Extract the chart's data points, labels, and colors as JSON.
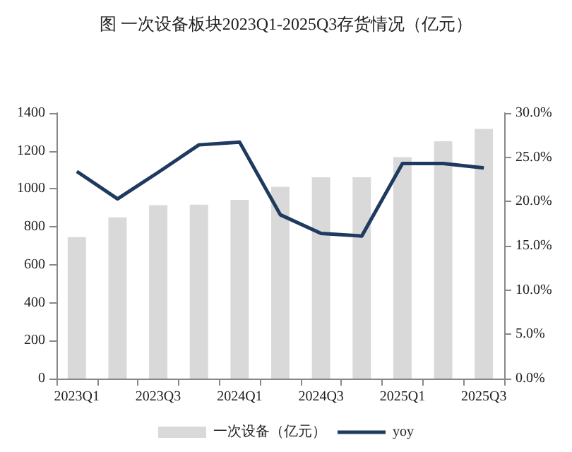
{
  "chart_data": {
    "type": "bar",
    "title": "图 一次设备板块2023Q1-2025Q3存货情况（亿元）",
    "categories": [
      "2023Q1",
      null,
      "2023Q3",
      null,
      "2024Q1",
      null,
      "2024Q3",
      null,
      "2025Q1",
      null,
      "2025Q3"
    ],
    "series": [
      {
        "name": "一次设备（亿元）",
        "color": "#d9d9d9",
        "values": [
          746,
          850,
          914,
          917,
          942,
          1011,
          1061,
          1061,
          1167,
          1251,
          1316
        ]
      },
      {
        "name": "yoy",
        "type": "line",
        "axis": "y2",
        "color": "#1f3a5f",
        "values": [
          23.4,
          20.3,
          23.3,
          26.4,
          26.7,
          18.5,
          16.4,
          16.1,
          24.3,
          24.3,
          23.8
        ]
      }
    ],
    "ylim": [
      0,
      1400
    ],
    "yticks": [
      0,
      200,
      400,
      600,
      800,
      1000,
      1200,
      1400
    ],
    "y2lim": [
      0,
      30
    ],
    "y2ticks": [
      {
        "value": 0,
        "label": "0.0%"
      },
      {
        "value": 5,
        "label": "5.0%"
      },
      {
        "value": 10,
        "label": "10.0%"
      },
      {
        "value": 15,
        "label": "15.0%"
      },
      {
        "value": 20,
        "label": "20.0%"
      },
      {
        "value": 25,
        "label": "25.0%"
      },
      {
        "value": 30,
        "label": "30.0%"
      }
    ],
    "legend": "bottom",
    "marker": "none",
    "grid": false
  }
}
